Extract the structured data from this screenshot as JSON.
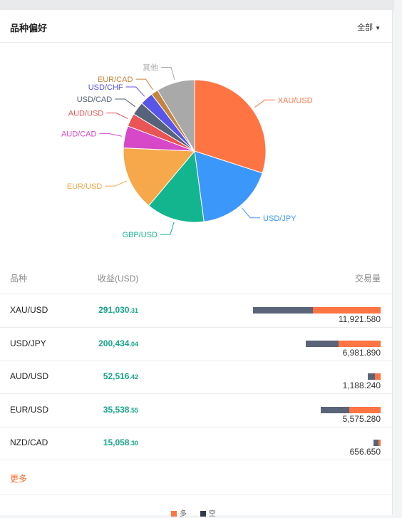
{
  "header": {
    "title": "品种偏好",
    "filter_label": "全部"
  },
  "colors": {
    "long": "#ff7443",
    "short": "#5a6478",
    "profit": "#17a589",
    "more": "#ff6a2d"
  },
  "chart_data": {
    "type": "pie",
    "labels": [
      "XAU/USD",
      "USD/JPY",
      "GBP/USD",
      "EUR/USD",
      "AUD/CAD",
      "AUD/USD",
      "USD/CAD",
      "USD/CHF",
      "EUR/CAD",
      "其他"
    ],
    "values": [
      30.0,
      17.9,
      13.2,
      14.6,
      5.0,
      3.0,
      3.0,
      3.0,
      1.6,
      8.7
    ],
    "colors": [
      "#ff7443",
      "#3c97fb",
      "#13b58f",
      "#f6a84b",
      "#d648c7",
      "#ea5455",
      "#56637a",
      "#5a55e9",
      "#c5843d",
      "#a9a9a9"
    ]
  },
  "table": {
    "headers": {
      "symbol": "品种",
      "profit": "收益(USD)",
      "volume": "交易量"
    },
    "rows": [
      {
        "symbol": "XAU/USD",
        "profit_int": "291,030",
        "profit_dec": ".31",
        "volume": "11,921.580",
        "short_ratio": 0.47,
        "long_ratio": 0.53,
        "scale": 1.0
      },
      {
        "symbol": "USD/JPY",
        "profit_int": "200,434",
        "profit_dec": ".04",
        "volume": "6,981.890",
        "short_ratio": 0.44,
        "long_ratio": 0.56,
        "scale": 0.585
      },
      {
        "symbol": "AUD/USD",
        "profit_int": "52,516",
        "profit_dec": ".42",
        "volume": "1,188.240",
        "short_ratio": 0.55,
        "long_ratio": 0.45,
        "scale": 0.1
      },
      {
        "symbol": "EUR/USD",
        "profit_int": "35,538",
        "profit_dec": ".55",
        "volume": "5,575.280",
        "short_ratio": 0.48,
        "long_ratio": 0.52,
        "scale": 0.468
      },
      {
        "symbol": "NZD/CAD",
        "profit_int": "15,058",
        "profit_dec": ".30",
        "volume": "656.650",
        "short_ratio": 0.7,
        "long_ratio": 0.3,
        "scale": 0.055
      }
    ]
  },
  "more_label": "更多",
  "legend": {
    "long": "多",
    "short": "空"
  }
}
